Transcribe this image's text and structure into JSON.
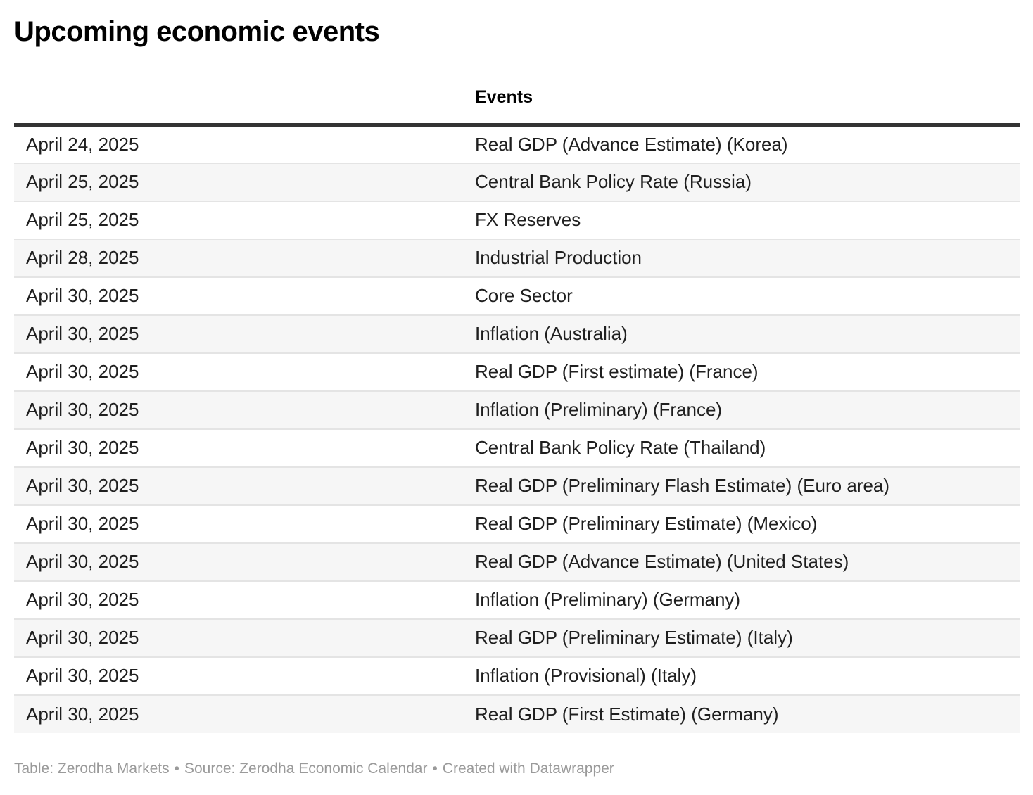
{
  "page": {
    "title": "Upcoming economic events"
  },
  "chart_data": {
    "type": "table",
    "title": "Upcoming economic events",
    "columns": [
      "",
      "Events"
    ],
    "rows": [
      [
        "April 24, 2025",
        "Real GDP (Advance Estimate) (Korea)"
      ],
      [
        "April 25, 2025",
        "Central Bank Policy Rate (Russia)"
      ],
      [
        "April 25, 2025",
        "FX Reserves"
      ],
      [
        "April 28, 2025",
        "Industrial Production"
      ],
      [
        "April 30, 2025",
        "Core Sector"
      ],
      [
        "April 30, 2025",
        "Inflation (Australia)"
      ],
      [
        "April 30, 2025",
        "Real GDP (First estimate) (France)"
      ],
      [
        "April 30, 2025",
        "Inflation (Preliminary) (France)"
      ],
      [
        "April 30, 2025",
        "Central Bank Policy Rate (Thailand)"
      ],
      [
        "April 30, 2025",
        "Real GDP (Preliminary Flash Estimate) (Euro area)"
      ],
      [
        "April 30, 2025",
        "Real GDP (Preliminary Estimate) (Mexico)"
      ],
      [
        "April 30, 2025",
        "Real GDP (Advance Estimate) (United States)"
      ],
      [
        "April 30, 2025",
        "Inflation (Preliminary) (Germany)"
      ],
      [
        "April 30, 2025",
        "Real GDP (Preliminary Estimate) (Italy)"
      ],
      [
        "April 30, 2025",
        "Inflation (Provisional) (Italy)"
      ],
      [
        "April 30, 2025",
        "Real GDP (First Estimate) (Germany)"
      ]
    ],
    "layout": {
      "striped_rows": true,
      "first_row_background": "white",
      "header_rule": true,
      "grid": "horizontal-only"
    }
  },
  "footer": {
    "parts": [
      "Table: Zerodha Markets",
      "Source: Zerodha Economic Calendar",
      "Created with Datawrapper"
    ],
    "separator": "•"
  },
  "colors": {
    "title_text": "#000000",
    "body_text": "#1f1f1f",
    "header_rule": "#333333",
    "row_stripe": "#f6f6f6",
    "row_divider": "#e4e4e4",
    "footer_text": "#9a9a9a",
    "background": "#ffffff"
  }
}
